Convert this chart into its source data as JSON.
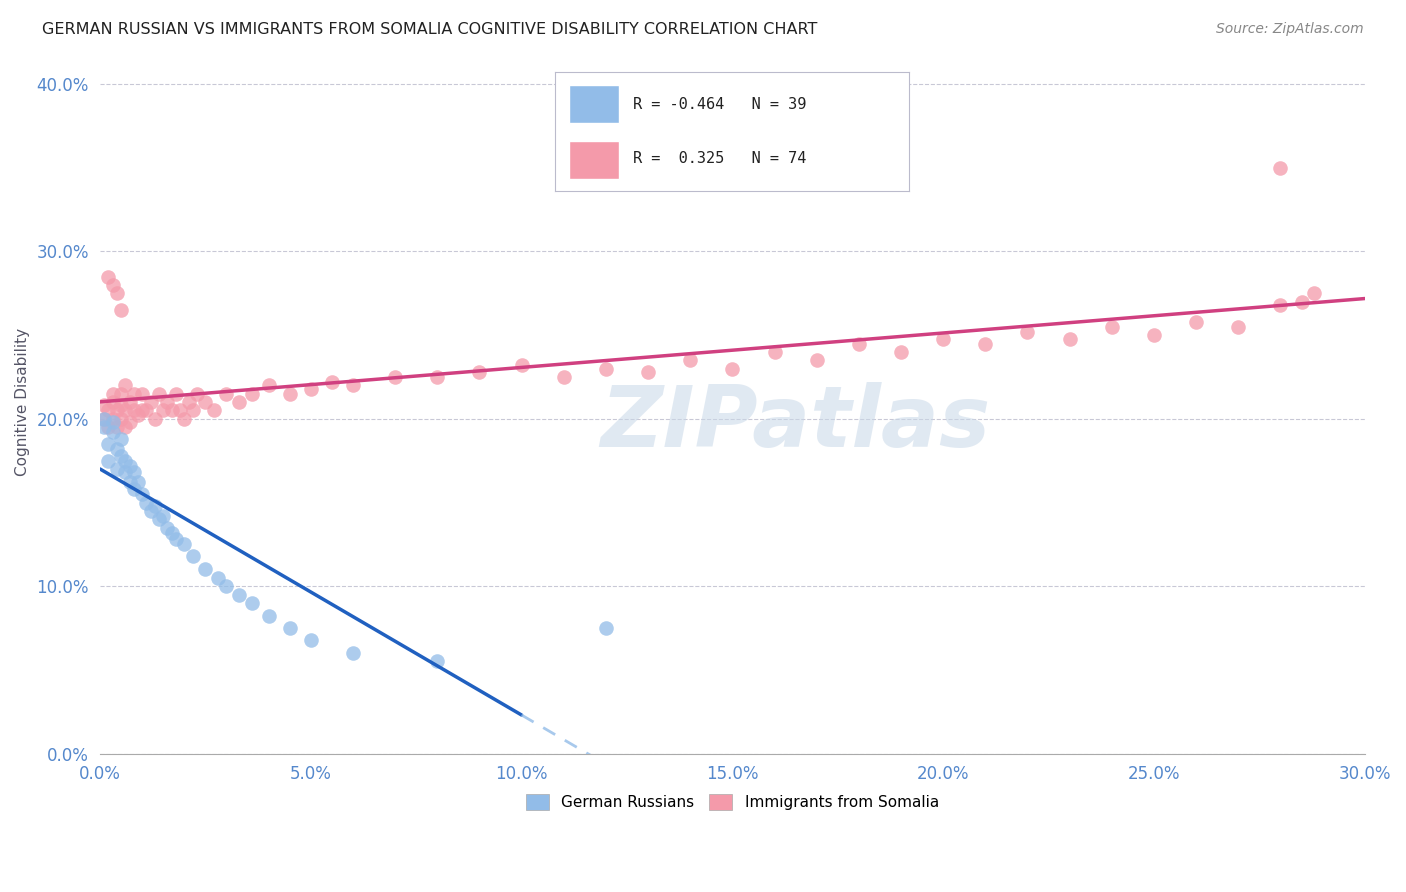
{
  "title": "GERMAN RUSSIAN VS IMMIGRANTS FROM SOMALIA COGNITIVE DISABILITY CORRELATION CHART",
  "source": "Source: ZipAtlas.com",
  "xlim": [
    0.0,
    0.3
  ],
  "ylim": [
    0.0,
    0.42
  ],
  "watermark": "ZIPatlas",
  "legend_label1": "German Russians",
  "legend_label2": "Immigrants from Somalia",
  "R1": -0.464,
  "N1": 39,
  "R2": 0.325,
  "N2": 74,
  "color_blue": "#92bce8",
  "color_pink": "#f49aaa",
  "line_blue": "#2060c0",
  "line_pink": "#d04080",
  "blue_x": [
    0.001,
    0.001,
    0.002,
    0.002,
    0.003,
    0.003,
    0.004,
    0.004,
    0.005,
    0.005,
    0.006,
    0.006,
    0.007,
    0.007,
    0.008,
    0.008,
    0.009,
    0.01,
    0.011,
    0.012,
    0.013,
    0.014,
    0.015,
    0.016,
    0.017,
    0.018,
    0.02,
    0.022,
    0.025,
    0.028,
    0.03,
    0.033,
    0.036,
    0.04,
    0.045,
    0.05,
    0.06,
    0.08,
    0.12
  ],
  "blue_y": [
    0.195,
    0.2,
    0.185,
    0.175,
    0.192,
    0.198,
    0.182,
    0.17,
    0.188,
    0.178,
    0.175,
    0.168,
    0.172,
    0.162,
    0.168,
    0.158,
    0.162,
    0.155,
    0.15,
    0.145,
    0.148,
    0.14,
    0.142,
    0.135,
    0.132,
    0.128,
    0.125,
    0.118,
    0.11,
    0.105,
    0.1,
    0.095,
    0.09,
    0.082,
    0.075,
    0.068,
    0.06,
    0.055,
    0.075
  ],
  "pink_x": [
    0.001,
    0.001,
    0.002,
    0.002,
    0.003,
    0.003,
    0.003,
    0.004,
    0.004,
    0.005,
    0.005,
    0.005,
    0.006,
    0.006,
    0.007,
    0.007,
    0.008,
    0.008,
    0.009,
    0.01,
    0.01,
    0.011,
    0.012,
    0.013,
    0.014,
    0.015,
    0.016,
    0.017,
    0.018,
    0.019,
    0.02,
    0.021,
    0.022,
    0.023,
    0.025,
    0.027,
    0.03,
    0.033,
    0.036,
    0.04,
    0.045,
    0.05,
    0.055,
    0.06,
    0.07,
    0.08,
    0.09,
    0.1,
    0.11,
    0.12,
    0.13,
    0.14,
    0.15,
    0.16,
    0.17,
    0.18,
    0.19,
    0.2,
    0.21,
    0.22,
    0.23,
    0.24,
    0.25,
    0.26,
    0.27,
    0.28,
    0.285,
    0.288,
    0.002,
    0.003,
    0.004,
    0.005,
    0.006,
    0.28
  ],
  "pink_y": [
    0.2,
    0.208,
    0.195,
    0.205,
    0.21,
    0.2,
    0.215,
    0.205,
    0.195,
    0.208,
    0.2,
    0.215,
    0.205,
    0.195,
    0.21,
    0.198,
    0.205,
    0.215,
    0.202,
    0.205,
    0.215,
    0.205,
    0.21,
    0.2,
    0.215,
    0.205,
    0.21,
    0.205,
    0.215,
    0.205,
    0.2,
    0.21,
    0.205,
    0.215,
    0.21,
    0.205,
    0.215,
    0.21,
    0.215,
    0.22,
    0.215,
    0.218,
    0.222,
    0.22,
    0.225,
    0.225,
    0.228,
    0.232,
    0.225,
    0.23,
    0.228,
    0.235,
    0.23,
    0.24,
    0.235,
    0.245,
    0.24,
    0.248,
    0.245,
    0.252,
    0.248,
    0.255,
    0.25,
    0.258,
    0.255,
    0.268,
    0.27,
    0.275,
    0.285,
    0.28,
    0.275,
    0.265,
    0.22,
    0.35
  ]
}
